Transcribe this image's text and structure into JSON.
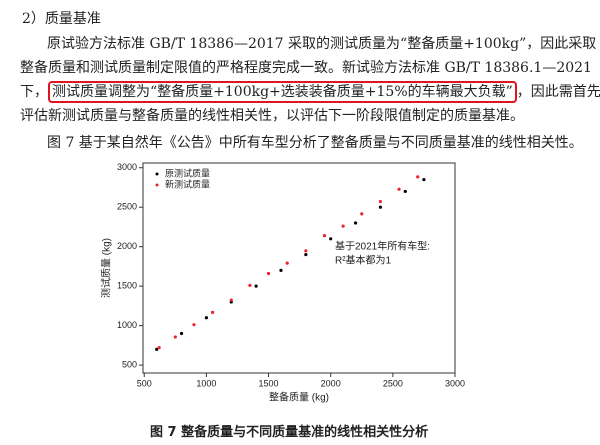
{
  "heading": "2）质量基准",
  "paragraph": {
    "lines": [
      "原试验方法标准 GB/T 18386—2017 采取的测试质量为“整备质量+100kg”，因此采取",
      "整备质量和测试质量制定限值的严格程度完成一致。新试验方法标准 GB/T 18386.1—2021",
      {
        "prefix": "下，",
        "highlight": "测试质量调整为“整备质量+100kg+选装装备质量+15%的车辆最大负载”",
        "suffix": "，因此需首先"
      },
      "评估新测试质量与整备质量的线性相关性，以评估下一阶段限值制定的质量基准。"
    ]
  },
  "intro": "图 7 基于某自然年《公告》中所有车型分析了整备质量与不同质量基准的线性相关性。",
  "chart_data": {
    "type": "scatter",
    "x_label": "整备质量 (kg)",
    "y_label": "测试质量 (kg)",
    "annotations": [
      "基于2021年所有车型:",
      "R²基本都为1"
    ],
    "xlim": [
      490,
      3000
    ],
    "xticks": [
      500,
      1000,
      1500,
      2000,
      2500,
      3000
    ],
    "ylim": [
      400,
      3060
    ],
    "yticks": [
      500,
      1000,
      1500,
      2000,
      2500,
      3000
    ],
    "legend": "upper left",
    "series": [
      {
        "name": "原测试质量",
        "color": "#000000",
        "x": [
          600,
          800,
          1000,
          1200,
          1400,
          1600,
          1800,
          2000,
          2200,
          2400,
          2600,
          2750
        ],
        "values": [
          700,
          900,
          1100,
          1300,
          1500,
          1700,
          1900,
          2100,
          2300,
          2500,
          2700,
          2850
        ]
      },
      {
        "name": "新测试质量",
        "color": "#e8262a",
        "x": [
          620,
          750,
          900,
          1050,
          1200,
          1350,
          1500,
          1650,
          1800,
          1950,
          2100,
          2250,
          2400,
          2550,
          2700
        ],
        "values": [
          721,
          856,
          1012,
          1168,
          1324,
          1510,
          1660,
          1792,
          1948,
          2140,
          2260,
          2416,
          2572,
          2728,
          2884
        ]
      }
    ]
  },
  "caption": "图 7 整备质量与不同质量基准的线性相关性分析"
}
